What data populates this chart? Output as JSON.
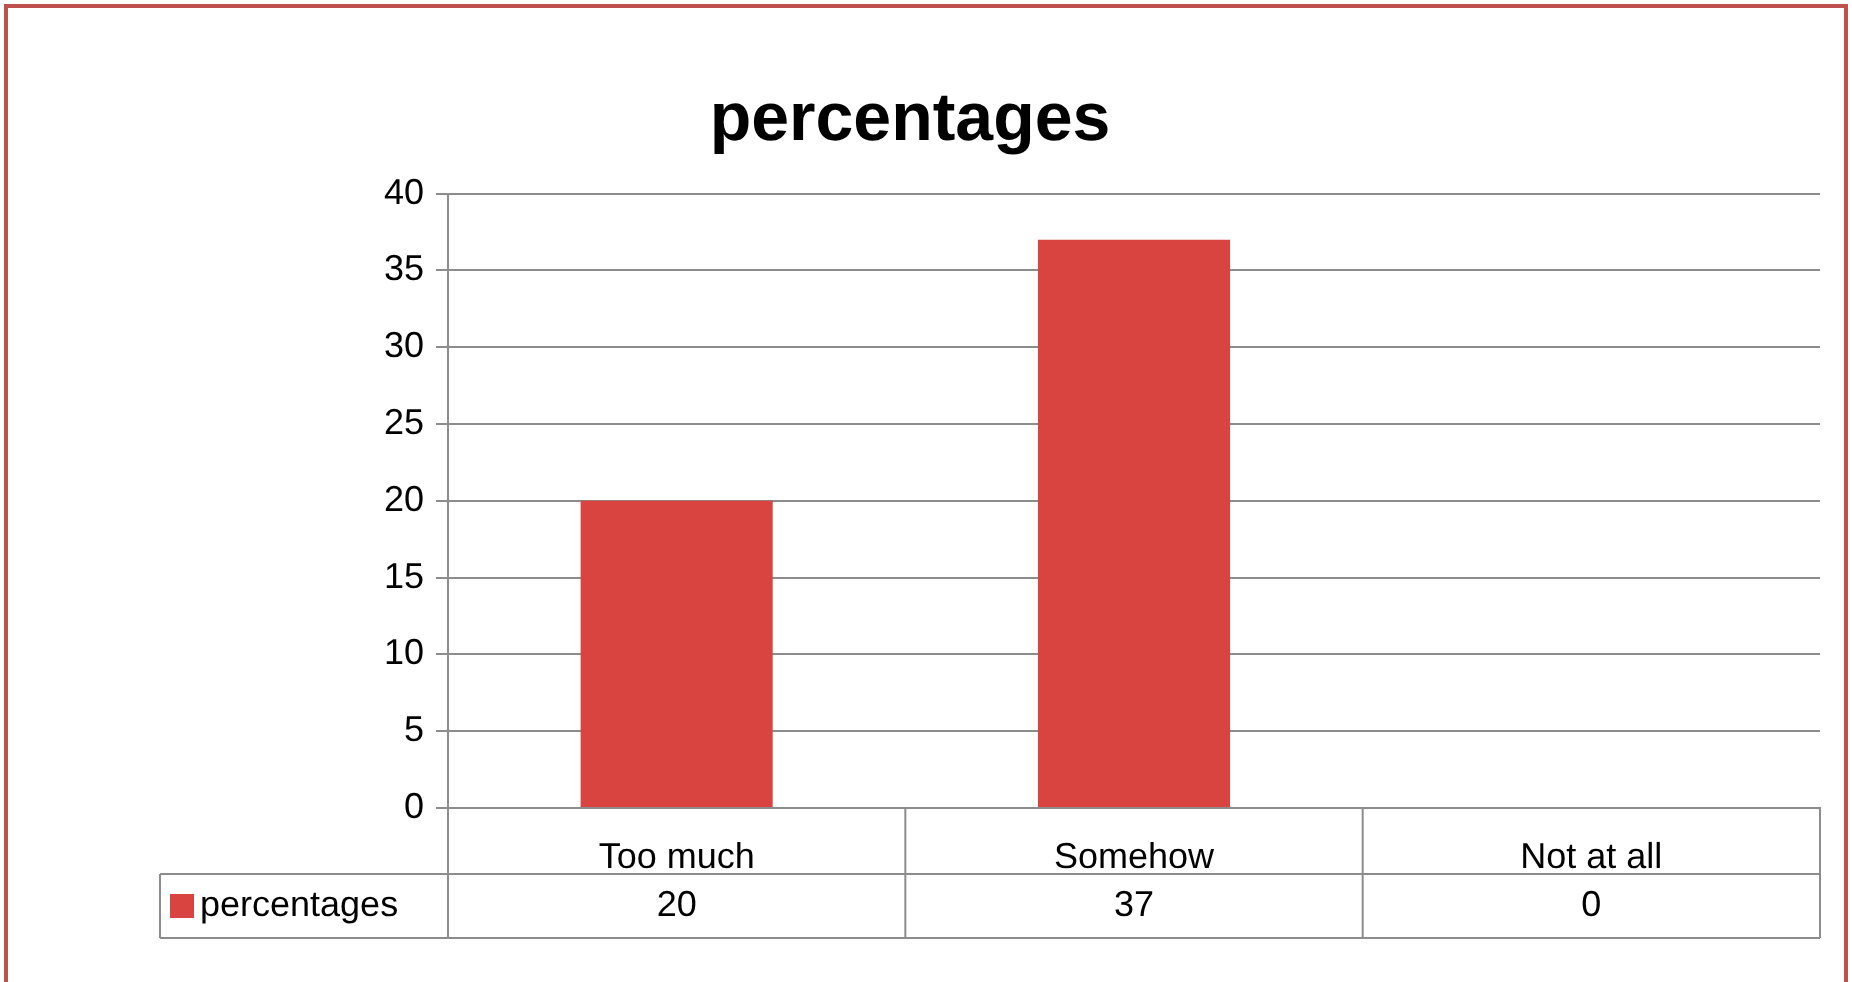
{
  "chart_data": {
    "type": "bar",
    "title": "percentages",
    "categories": [
      "Too much",
      "Somehow",
      "Not at all"
    ],
    "series": [
      {
        "name": "percentages",
        "color": "#d94340",
        "values": [
          20,
          37,
          0
        ]
      }
    ],
    "ylim": [
      0,
      40
    ],
    "yticks": [
      0,
      5,
      10,
      15,
      20,
      25,
      30,
      35,
      40
    ],
    "grid": "y",
    "legend": "bottom",
    "data_labels": true
  }
}
